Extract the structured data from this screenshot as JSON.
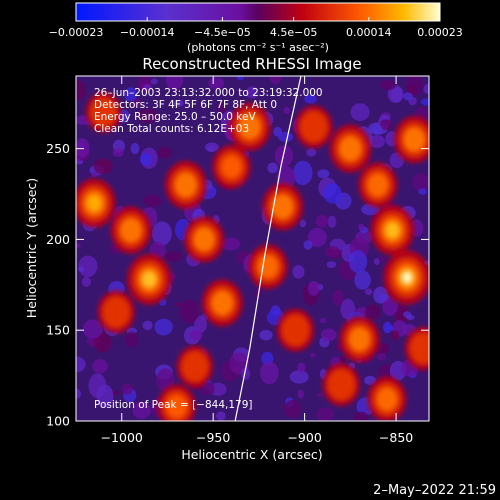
{
  "chart_data": {
    "type": "heatmap",
    "title": "Reconstructed RHESSI Image",
    "xlabel": "Heliocentric X (arcsec)",
    "ylabel": "Heliocentric Y (arcsec)",
    "xlim": [
      -1025,
      -832
    ],
    "ylim": [
      100,
      290
    ],
    "x_ticks": [
      -1000,
      -950,
      -900,
      -850
    ],
    "x_tick_labels": [
      "−1000",
      "−950",
      "−900",
      "−850"
    ],
    "y_ticks": [
      100,
      150,
      200,
      250
    ],
    "y_tick_labels": [
      "100",
      "150",
      "200",
      "250"
    ],
    "colorbar": {
      "min": -0.00023,
      "max": 0.00023,
      "ticks": [
        -0.00023,
        -0.00014,
        -4.5e-05,
        4.5e-05,
        0.00014,
        0.00023
      ],
      "tick_labels": [
        "−0.00023",
        "−0.00014",
        "−4.5e−05",
        "4.5e−05",
        "0.00014",
        "0.00023"
      ],
      "unit_label": "(photons cm⁻² s⁻¹ asec⁻²)"
    },
    "annotations": [
      "26–Jun–2003 23:13:32.000 to 23:19:32.000",
      "Detectors: 3F 4F 5F 6F 7F 8F, Att 0",
      "Energy Range: 25.0 – 50.0 keV",
      "Clean     Total counts: 6.12E+03"
    ],
    "peak_label": "Position of Peak = [−844,179]",
    "peak": [
      -844,
      179
    ],
    "hot_spots": [
      {
        "x": -1015,
        "y": 220,
        "v": 0.00018
      },
      {
        "x": -995,
        "y": 205,
        "v": 0.00016
      },
      {
        "x": -985,
        "y": 178,
        "v": 0.0002
      },
      {
        "x": -1003,
        "y": 160,
        "v": 0.00012
      },
      {
        "x": -965,
        "y": 230,
        "v": 0.00017
      },
      {
        "x": -955,
        "y": 200,
        "v": 0.00015
      },
      {
        "x": -945,
        "y": 165,
        "v": 0.00016
      },
      {
        "x": -960,
        "y": 130,
        "v": 0.00011
      },
      {
        "x": -970,
        "y": 108,
        "v": 0.00013
      },
      {
        "x": -930,
        "y": 262,
        "v": 0.00017
      },
      {
        "x": -940,
        "y": 240,
        "v": 0.00013
      },
      {
        "x": -912,
        "y": 218,
        "v": 0.00016
      },
      {
        "x": -920,
        "y": 185,
        "v": 0.00014
      },
      {
        "x": -905,
        "y": 150,
        "v": 0.00012
      },
      {
        "x": -895,
        "y": 262,
        "v": 0.00012
      },
      {
        "x": -875,
        "y": 250,
        "v": 0.00017
      },
      {
        "x": -860,
        "y": 230,
        "v": 0.00014
      },
      {
        "x": -844,
        "y": 179,
        "v": 0.00023
      },
      {
        "x": -852,
        "y": 205,
        "v": 0.00019
      },
      {
        "x": -840,
        "y": 255,
        "v": 0.00016
      },
      {
        "x": -870,
        "y": 145,
        "v": 0.00015
      },
      {
        "x": -880,
        "y": 120,
        "v": 0.00012
      },
      {
        "x": -855,
        "y": 112,
        "v": 0.00014
      },
      {
        "x": -835,
        "y": 140,
        "v": 0.00012
      },
      {
        "x": -1010,
        "y": 270,
        "v": 0.0001
      }
    ],
    "limb_curve": [
      {
        "x": -938,
        "y": 100
      },
      {
        "x": -930,
        "y": 140
      },
      {
        "x": -922,
        "y": 190
      },
      {
        "x": -913,
        "y": 240
      },
      {
        "x": -902,
        "y": 290
      }
    ]
  },
  "footer": {
    "date_stamp": "2–May–2022 21:59"
  }
}
